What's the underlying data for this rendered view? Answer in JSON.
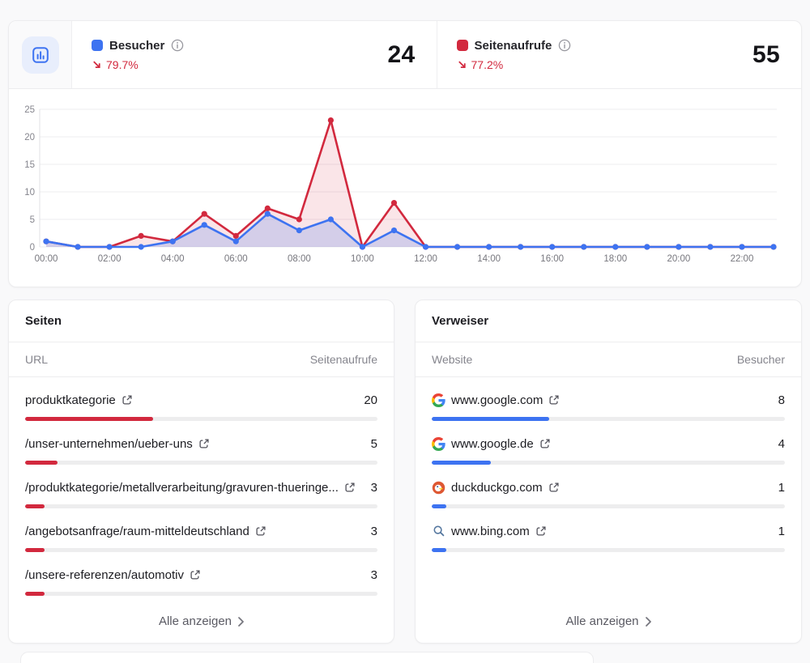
{
  "summary": {
    "metrics": [
      {
        "id": "besucher",
        "label": "Besucher",
        "value": "24",
        "trend_percent": "79.7%",
        "trend_direction": "down",
        "color": "#3d73f1"
      },
      {
        "id": "seitenaufrufe",
        "label": "Seitenaufrufe",
        "value": "55",
        "trend_percent": "77.2%",
        "trend_direction": "down",
        "color": "#d2293e"
      }
    ],
    "trend_color": "#d2293e"
  },
  "chart_data": {
    "type": "line",
    "x": [
      "00:00",
      "01:00",
      "02:00",
      "03:00",
      "04:00",
      "05:00",
      "06:00",
      "07:00",
      "08:00",
      "09:00",
      "10:00",
      "11:00",
      "12:00",
      "13:00",
      "14:00",
      "15:00",
      "16:00",
      "17:00",
      "18:00",
      "19:00",
      "20:00",
      "21:00",
      "22:00",
      "23:00"
    ],
    "x_tick_step": 2,
    "series": [
      {
        "name": "Besucher",
        "color": "#3d73f1",
        "fill": "rgba(61,115,241,0.20)",
        "values": [
          1,
          0,
          0,
          0,
          1,
          4,
          1,
          6,
          3,
          5,
          0,
          3,
          0,
          0,
          0,
          0,
          0,
          0,
          0,
          0,
          0,
          0,
          0,
          0
        ]
      },
      {
        "name": "Seitenaufrufe",
        "color": "#d2293e",
        "fill": "rgba(210,41,62,0.12)",
        "values": [
          1,
          0,
          0,
          2,
          1,
          6,
          2,
          7,
          5,
          23,
          0,
          8,
          0,
          0,
          0,
          0,
          0,
          0,
          0,
          0,
          0,
          0,
          0,
          0
        ]
      }
    ],
    "ylim": [
      0,
      25
    ],
    "yticks": [
      0,
      5,
      10,
      15,
      20,
      25
    ],
    "grid": true,
    "legend_position": "header"
  },
  "panels": {
    "seiten": {
      "title": "Seiten",
      "columns": [
        "URL",
        "Seitenaufrufe"
      ],
      "total": 55,
      "bar_color": "#d2293e",
      "rows": [
        {
          "label": "produktkategorie",
          "value": 20
        },
        {
          "label": "/unser-unternehmen/ueber-uns",
          "value": 5
        },
        {
          "label": "/produktkategorie/metallverarbeitung/gravuren-thueringe...",
          "value": 3
        },
        {
          "label": "/angebotsanfrage/raum-mitteldeutschland",
          "value": 3
        },
        {
          "label": "/unsere-referenzen/automotiv",
          "value": 3
        }
      ],
      "footer": "Alle anzeigen"
    },
    "verweiser": {
      "title": "Verweiser",
      "columns": [
        "Website",
        "Besucher"
      ],
      "total": 24,
      "bar_color": "#3d73f1",
      "rows": [
        {
          "label": "www.google.com",
          "value": 8,
          "favicon": "google"
        },
        {
          "label": "www.google.de",
          "value": 4,
          "favicon": "google"
        },
        {
          "label": "duckduckgo.com",
          "value": 1,
          "favicon": "duckduckgo"
        },
        {
          "label": "www.bing.com",
          "value": 1,
          "favicon": "search"
        }
      ],
      "footer": "Alle anzeigen"
    }
  }
}
